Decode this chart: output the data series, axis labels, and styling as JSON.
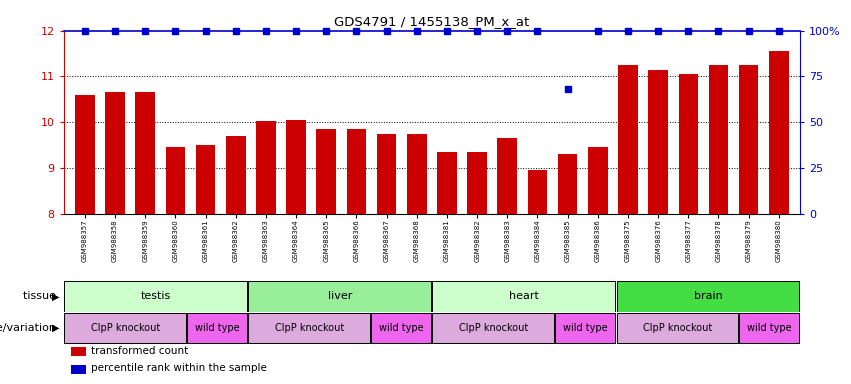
{
  "title": "GDS4791 / 1455138_PM_x_at",
  "samples": [
    "GSM988357",
    "GSM988358",
    "GSM988359",
    "GSM988360",
    "GSM988361",
    "GSM988362",
    "GSM988363",
    "GSM988364",
    "GSM988365",
    "GSM988366",
    "GSM988367",
    "GSM988368",
    "GSM988381",
    "GSM988382",
    "GSM988383",
    "GSM988384",
    "GSM988385",
    "GSM988386",
    "GSM988375",
    "GSM988376",
    "GSM988377",
    "GSM988378",
    "GSM988379",
    "GSM988380"
  ],
  "bar_values": [
    10.6,
    10.65,
    10.65,
    9.45,
    9.5,
    9.7,
    10.02,
    10.05,
    9.85,
    9.85,
    9.75,
    9.75,
    9.35,
    9.35,
    9.65,
    8.95,
    9.3,
    9.45,
    11.25,
    11.15,
    11.05,
    11.25,
    11.25,
    11.55
  ],
  "percentile_values": [
    100,
    100,
    100,
    100,
    100,
    100,
    100,
    100,
    100,
    100,
    100,
    100,
    100,
    100,
    100,
    100,
    68,
    100,
    100,
    100,
    100,
    100,
    100,
    100
  ],
  "bar_color": "#cc0000",
  "percentile_color": "#0000cc",
  "ylim_left": [
    8,
    12
  ],
  "yticks_left": [
    8,
    9,
    10,
    11,
    12
  ],
  "ylim_right": [
    0,
    100
  ],
  "yticks_right": [
    0,
    25,
    50,
    75,
    100
  ],
  "ytick_right_labels": [
    "0",
    "25",
    "50",
    "75",
    "100%"
  ],
  "grid_values": [
    9,
    10,
    11
  ],
  "tissues": [
    {
      "label": "testis",
      "start": 0,
      "end": 6,
      "color": "#ccffcc"
    },
    {
      "label": "liver",
      "start": 6,
      "end": 12,
      "color": "#99ee99"
    },
    {
      "label": "heart",
      "start": 12,
      "end": 18,
      "color": "#ccffcc"
    },
    {
      "label": "brain",
      "start": 18,
      "end": 24,
      "color": "#44dd44"
    }
  ],
  "genotypes": [
    {
      "label": "ClpP knockout",
      "start": 0,
      "end": 4,
      "color": "#ddaadd"
    },
    {
      "label": "wild type",
      "start": 4,
      "end": 6,
      "color": "#ee66ee"
    },
    {
      "label": "ClpP knockout",
      "start": 6,
      "end": 10,
      "color": "#ddaadd"
    },
    {
      "label": "wild type",
      "start": 10,
      "end": 12,
      "color": "#ee66ee"
    },
    {
      "label": "ClpP knockout",
      "start": 12,
      "end": 16,
      "color": "#ddaadd"
    },
    {
      "label": "wild type",
      "start": 16,
      "end": 18,
      "color": "#ee66ee"
    },
    {
      "label": "ClpP knockout",
      "start": 18,
      "end": 22,
      "color": "#ddaadd"
    },
    {
      "label": "wild type",
      "start": 22,
      "end": 24,
      "color": "#ee66ee"
    }
  ],
  "legend_items": [
    {
      "label": "transformed count",
      "color": "#cc0000"
    },
    {
      "label": "percentile rank within the sample",
      "color": "#0000cc"
    }
  ],
  "tissue_label": "tissue",
  "genotype_label": "genotype/variation",
  "background_color": "#ffffff",
  "fig_width": 8.51,
  "fig_height": 3.84,
  "dpi": 100
}
